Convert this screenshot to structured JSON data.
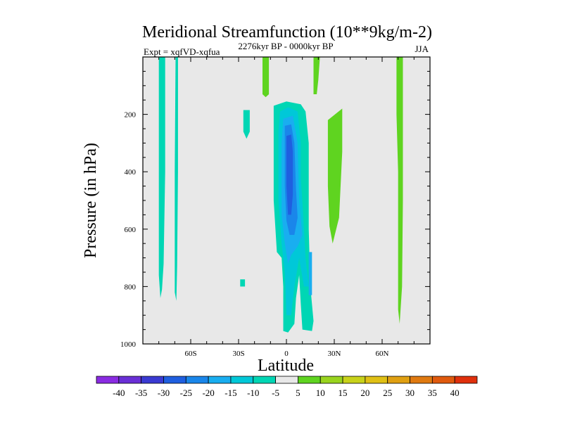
{
  "chart_data": {
    "type": "contour",
    "title": "Meridional Streamfunction (10**9kg/m-2)",
    "left_label": "Expt = xqfVD-xqfua",
    "center_label": "2276kyr BP - 0000kyr BP",
    "right_label": "JJA",
    "xlabel": "Latitude",
    "ylabel": "Pressure (in hPa)",
    "xlim": [
      -90,
      90
    ],
    "ylim": [
      1000,
      0
    ],
    "x_ticks": [
      {
        "value": -60,
        "label": "60S"
      },
      {
        "value": -30,
        "label": "30S"
      },
      {
        "value": 0,
        "label": "0"
      },
      {
        "value": 30,
        "label": "30N"
      },
      {
        "value": 60,
        "label": "60N"
      }
    ],
    "y_ticks": [
      200,
      400,
      600,
      800,
      1000
    ],
    "background_color": "#e8e8e8",
    "colorbar": {
      "labels": [
        "-40",
        "-35",
        "-30",
        "-25",
        "-20",
        "-15",
        "-10",
        "-5",
        "5",
        "10",
        "15",
        "20",
        "25",
        "30",
        "35",
        "40"
      ],
      "colors": [
        "#8a2be2",
        "#6a2fd6",
        "#3a3ad2",
        "#1f5fe0",
        "#1a86ea",
        "#19aef0",
        "#00c8d8",
        "#00d6b4",
        "#e8e8e8",
        "#5fd420",
        "#99d41e",
        "#c8d21a",
        "#e0c015",
        "#e0a012",
        "#e07a10",
        "#e05a0e",
        "#e0300c"
      ]
    },
    "regions": [
      {
        "label": "-5",
        "color": "#00d6b4",
        "points": [
          [
            -80,
            0
          ],
          [
            -76,
            0
          ],
          [
            -76,
            400
          ],
          [
            -77,
            720
          ],
          [
            -78,
            810
          ],
          [
            -79,
            840
          ],
          [
            -80,
            760
          ],
          [
            -80,
            400
          ]
        ]
      },
      {
        "label": "-5",
        "color": "#00d6b4",
        "points": [
          [
            -69.5,
            0
          ],
          [
            -68,
            0
          ],
          [
            -68,
            400
          ],
          [
            -68.5,
            730
          ],
          [
            -69,
            850
          ],
          [
            -70,
            820
          ],
          [
            -70,
            400
          ]
        ]
      },
      {
        "label": "-5",
        "color": "#00d6b4",
        "points": [
          [
            -27,
            185
          ],
          [
            -23,
            185
          ],
          [
            -23,
            260
          ],
          [
            -25,
            285
          ],
          [
            -27,
            260
          ]
        ]
      },
      {
        "label": "-5",
        "color": "#00d6b4",
        "points": [
          [
            -29,
            775
          ],
          [
            -26,
            775
          ],
          [
            -26,
            800
          ],
          [
            -29,
            800
          ]
        ]
      },
      {
        "label": "-5",
        "color": "#00d6b4",
        "points": [
          [
            -8,
            170
          ],
          [
            0,
            155
          ],
          [
            9,
            165
          ],
          [
            12,
            190
          ],
          [
            14,
            300
          ],
          [
            14,
            600
          ],
          [
            15,
            800
          ],
          [
            17,
            920
          ],
          [
            16,
            955
          ],
          [
            10,
            950
          ],
          [
            9,
            860
          ],
          [
            8,
            760
          ],
          [
            6,
            840
          ],
          [
            5,
            930
          ],
          [
            1,
            960
          ],
          [
            -2,
            955
          ],
          [
            -2,
            800
          ],
          [
            -3,
            700
          ],
          [
            -6,
            680
          ],
          [
            -8,
            500
          ]
        ]
      },
      {
        "label": "-10",
        "color": "#00c8d8",
        "points": [
          [
            -4,
            190
          ],
          [
            1,
            175
          ],
          [
            7,
            190
          ],
          [
            9,
            300
          ],
          [
            9,
            420
          ],
          [
            11,
            600
          ],
          [
            12,
            700
          ],
          [
            14,
            800
          ],
          [
            11,
            800
          ],
          [
            8,
            700
          ],
          [
            5,
            800
          ],
          [
            3,
            900
          ],
          [
            0,
            900
          ],
          [
            -1,
            750
          ],
          [
            -3,
            650
          ],
          [
            -5,
            500
          ],
          [
            -5,
            260
          ]
        ]
      },
      {
        "label": "-15",
        "color": "#19aef0",
        "points": [
          [
            -2,
            215
          ],
          [
            4,
            205
          ],
          [
            7,
            300
          ],
          [
            8,
            500
          ],
          [
            10,
            620
          ],
          [
            7,
            660
          ],
          [
            3,
            690
          ],
          [
            1,
            720
          ],
          [
            -1,
            650
          ],
          [
            -3,
            550
          ],
          [
            -3,
            300
          ]
        ]
      },
      {
        "label": "-15",
        "color": "#19aef0",
        "points": [
          [
            14,
            680
          ],
          [
            16,
            680
          ],
          [
            16,
            830
          ],
          [
            14,
            830
          ]
        ]
      },
      {
        "label": "-20",
        "color": "#1a86ea",
        "points": [
          [
            -1,
            240
          ],
          [
            3,
            235
          ],
          [
            5,
            300
          ],
          [
            6,
            460
          ],
          [
            7,
            560
          ],
          [
            5,
            620
          ],
          [
            2,
            620
          ],
          [
            0,
            570
          ],
          [
            -1,
            450
          ]
        ]
      },
      {
        "label": "-25",
        "color": "#1f5fe0",
        "points": [
          [
            0,
            275
          ],
          [
            3,
            270
          ],
          [
            4,
            330
          ],
          [
            4,
            480
          ],
          [
            3,
            550
          ],
          [
            1,
            550
          ],
          [
            0,
            450
          ]
        ]
      },
      {
        "label": "5",
        "color": "#5fd420",
        "points": [
          [
            -15,
            0
          ],
          [
            -11,
            0
          ],
          [
            -11,
            130
          ],
          [
            -13,
            140
          ],
          [
            -15,
            130
          ]
        ]
      },
      {
        "label": "5",
        "color": "#5fd420",
        "points": [
          [
            17,
            0
          ],
          [
            21,
            0
          ],
          [
            20,
            80
          ],
          [
            19,
            130
          ],
          [
            17,
            130
          ],
          [
            17,
            50
          ]
        ]
      },
      {
        "label": "5",
        "color": "#5fd420",
        "points": [
          [
            26,
            220
          ],
          [
            35,
            180
          ],
          [
            35,
            330
          ],
          [
            33,
            560
          ],
          [
            29,
            650
          ],
          [
            27,
            590
          ],
          [
            26,
            450
          ]
        ]
      },
      {
        "label": "5",
        "color": "#5fd420",
        "points": [
          [
            69,
            0
          ],
          [
            73,
            0
          ],
          [
            73,
            250
          ],
          [
            73,
            500
          ],
          [
            72.5,
            800
          ],
          [
            71,
            930
          ],
          [
            70,
            880
          ],
          [
            70,
            400
          ],
          [
            69,
            200
          ]
        ]
      }
    ]
  }
}
